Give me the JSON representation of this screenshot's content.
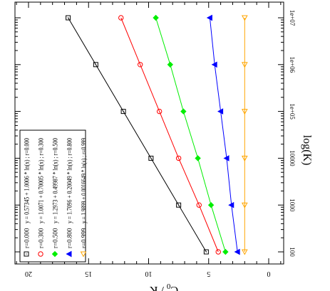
{
  "chart_data": {
    "type": "line",
    "orientation": "rotated-90-cw",
    "xlabel": "log(K)",
    "ylabel": "C0 / K",
    "x_scale": "log",
    "x_ticks": [
      100,
      1000,
      10000,
      100000,
      1000000,
      10000000
    ],
    "x_tick_labels": [
      "100",
      "1000",
      "10000",
      "1e+05",
      "1e+06",
      "1e+07"
    ],
    "y_ticks": [
      0,
      5,
      10,
      15,
      20
    ],
    "y_tick_labels": [
      "0",
      "5",
      "10",
      "15",
      "20"
    ],
    "ylim": [
      -2,
      22
    ],
    "grid": false,
    "legend_position": "bottom-left",
    "x": [
      100,
      1000,
      10000,
      100000,
      1000000,
      10000000
    ],
    "series": [
      {
        "name": "r=0.000",
        "marker": "square",
        "color": "#000000",
        "fit_label": "y = 0.57345 + 1.0006 * ln(x) ; r=0.000",
        "values": [
          5.2,
          7.5,
          9.8,
          12.1,
          14.4,
          16.7
        ]
      },
      {
        "name": "r=0.300",
        "marker": "circle",
        "color": "#ff0000",
        "fit_label": "y = 1.0071 + 0.70005 * ln(x) ; r=0.300",
        "values": [
          4.2,
          5.8,
          7.5,
          9.1,
          10.7,
          12.3
        ]
      },
      {
        "name": "r=0.500",
        "marker": "diamond",
        "color": "#00ee00",
        "fit_label": "y = 1.2973 + 0.49987 * ln(x) ; r=0.500",
        "values": [
          3.6,
          4.8,
          5.9,
          7.1,
          8.2,
          9.4
        ]
      },
      {
        "name": "r=0.800",
        "marker": "triangle-left",
        "color": "#0000ff",
        "fit_label": "y = 1.7096 + 0.20049 * ln(x) ; r=0.800",
        "values": [
          2.6,
          3.1,
          3.5,
          4.0,
          4.5,
          4.9
        ]
      },
      {
        "name": "r=0.999",
        "marker": "triangle-down",
        "color": "#ffa500",
        "fit_label": "y = 1.9899 + 0.0016649 * ln(x) ; r=0.999",
        "values": [
          2.0,
          2.0,
          2.0,
          2.0,
          2.0,
          2.0
        ]
      }
    ]
  }
}
